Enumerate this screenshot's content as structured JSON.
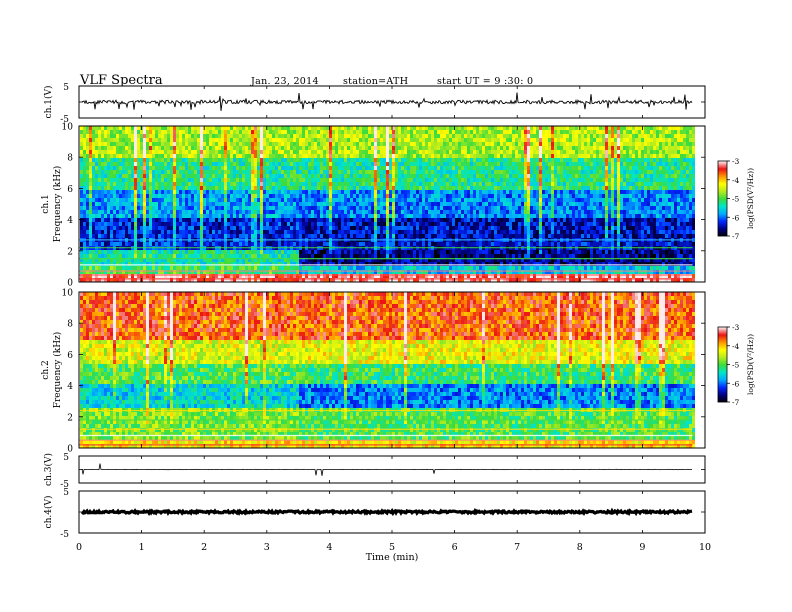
{
  "header": {
    "title": "VLF  Spectra",
    "date": "Jan. 23, 2014",
    "station": "station=ATH",
    "start": "start  UT  =   9  :30: 0"
  },
  "chart_data": [
    {
      "type": "line",
      "panel": "ch1-waveform",
      "ylabel": "ch.1(V)",
      "ylim": [
        -5,
        5
      ],
      "xlim": [
        0,
        10
      ],
      "yticks": [
        "5",
        "-5"
      ],
      "description": "noisy trace centered near 0 V with amplitude ~0.5 V and sparse spikes up to ~1 V"
    },
    {
      "type": "heatmap",
      "panel": "ch1-spectrogram",
      "ylabel": "ch.1\nFrequency (kHz)",
      "ylabel_line1": "ch.1",
      "ylabel_line2": "Frequency (kHz)",
      "xlim": [
        0,
        10
      ],
      "ylim": [
        0,
        10
      ],
      "yticks": [
        "0",
        "2",
        "4",
        "6",
        "8",
        "10"
      ],
      "data_end_min": 9.8,
      "colorbar": {
        "label": "log(PSD(V²/Hz))",
        "range": [
          -7,
          -3
        ],
        "ticks": [
          "-3",
          "-4",
          "-5",
          "-6",
          "-7"
        ]
      },
      "profile_before_3_5min": [
        {
          "f_khz": [
            0,
            0.5
          ],
          "log_psd": -3.2
        },
        {
          "f_khz": [
            0.5,
            1
          ],
          "log_psd": -5.0
        },
        {
          "f_khz": [
            1,
            2
          ],
          "log_psd": -5.3
        },
        {
          "f_khz": [
            2,
            4
          ],
          "log_psd": -6.3
        },
        {
          "f_khz": [
            4,
            6
          ],
          "log_psd": -5.8
        },
        {
          "f_khz": [
            6,
            8
          ],
          "log_psd": -5.2
        },
        {
          "f_khz": [
            8,
            10
          ],
          "log_psd": -4.6
        }
      ],
      "profile_after_3_5min": [
        {
          "f_khz": [
            0,
            0.5
          ],
          "log_psd": -3.2
        },
        {
          "f_khz": [
            0.5,
            1
          ],
          "log_psd": -5.6
        },
        {
          "f_khz": [
            1,
            2
          ],
          "log_psd": -6.6
        },
        {
          "f_khz": [
            2,
            4
          ],
          "log_psd": -6.4
        },
        {
          "f_khz": [
            4,
            6
          ],
          "log_psd": -5.9
        },
        {
          "f_khz": [
            6,
            8
          ],
          "log_psd": -5.2
        },
        {
          "f_khz": [
            8,
            10
          ],
          "log_psd": -4.6
        }
      ]
    },
    {
      "type": "heatmap",
      "panel": "ch2-spectrogram",
      "ylabel": "ch.2\nFrequency (kHz)",
      "ylabel_line1": "ch.2",
      "ylabel_line2": "Frequency (kHz)",
      "xlim": [
        0,
        10
      ],
      "ylim": [
        0,
        10
      ],
      "yticks": [
        "0",
        "2",
        "4",
        "6",
        "8",
        "10"
      ],
      "data_end_min": 9.8,
      "colorbar": {
        "label": "log(PSD(V²/Hz))",
        "range": [
          -7,
          -3
        ],
        "ticks": [
          "-3",
          "-4",
          "-5",
          "-6",
          "-7"
        ]
      },
      "profile_before_3_5min": [
        {
          "f_khz": [
            0,
            0.5
          ],
          "log_psd": -4.2
        },
        {
          "f_khz": [
            0.5,
            2.5
          ],
          "log_psd": -4.8
        },
        {
          "f_khz": [
            2.5,
            4
          ],
          "log_psd": -5.5
        },
        {
          "f_khz": [
            4,
            5.5
          ],
          "log_psd": -5.0
        },
        {
          "f_khz": [
            5.5,
            7
          ],
          "log_psd": -4.4
        },
        {
          "f_khz": [
            7,
            10
          ],
          "log_psd": -3.6
        }
      ],
      "profile_after_3_5min": [
        {
          "f_khz": [
            0,
            0.5
          ],
          "log_psd": -4.2
        },
        {
          "f_khz": [
            0.5,
            2.5
          ],
          "log_psd": -5.0
        },
        {
          "f_khz": [
            2.5,
            4
          ],
          "log_psd": -5.9
        },
        {
          "f_khz": [
            4,
            5.5
          ],
          "log_psd": -5.1
        },
        {
          "f_khz": [
            5.5,
            7
          ],
          "log_psd": -4.3
        },
        {
          "f_khz": [
            7,
            10
          ],
          "log_psd": -3.6
        }
      ]
    },
    {
      "type": "line",
      "panel": "ch3-waveform",
      "ylabel": "ch.3(V)",
      "ylim": [
        -5,
        5
      ],
      "xlim": [
        0,
        10
      ],
      "yticks": [
        "5",
        "-5"
      ],
      "description": "nearly flat trace near 0 V"
    },
    {
      "type": "line",
      "panel": "ch4-waveform",
      "ylabel": "ch.4(V)",
      "ylim": [
        -5,
        5
      ],
      "xlim": [
        0,
        10
      ],
      "yticks": [
        "5",
        "-5"
      ],
      "description": "thick dense trace near 0 V"
    }
  ],
  "xaxis": {
    "label": "Time  (min)",
    "ticks": [
      "0",
      "1",
      "2",
      "3",
      "4",
      "5",
      "6",
      "7",
      "8",
      "9",
      "10"
    ]
  }
}
